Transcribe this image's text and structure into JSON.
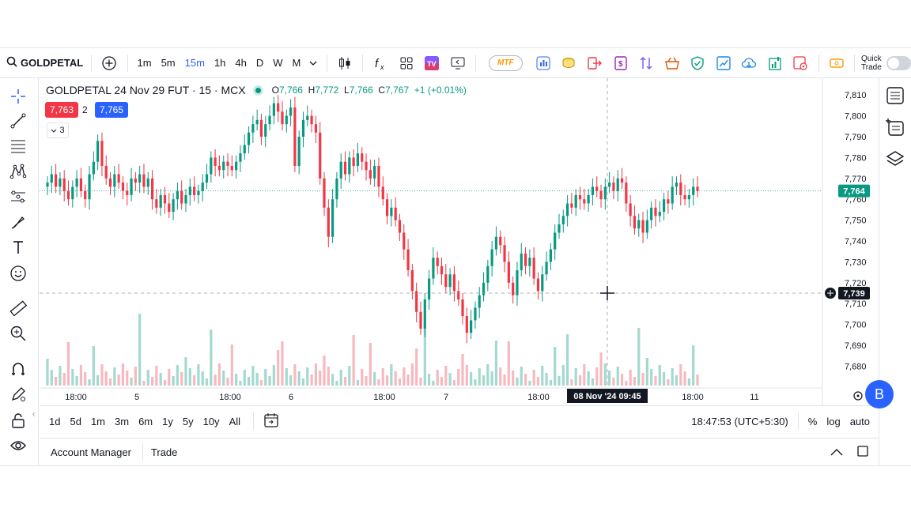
{
  "topbar": {
    "symbol": "GOLDPETAL",
    "timeframes": [
      "1m",
      "5m",
      "15m",
      "1h",
      "4h",
      "D",
      "W",
      "M"
    ],
    "active_timeframe": "15m",
    "mtf_label": "MTF",
    "quick_trade_label_1": "Quick",
    "quick_trade_label_2": "Trade"
  },
  "legend": {
    "title": "GOLDPETAL 24 Nov 29 FUT · 15 · MCX",
    "o_key": "O",
    "o_val": "7,766",
    "h_key": "H",
    "h_val": "7,772",
    "l_key": "L",
    "l_val": "7,766",
    "c_key": "C",
    "c_val": "7,767",
    "change": "+1 (+0.01%)",
    "sell_price": "7,763",
    "spread": "2",
    "buy_price": "7,765",
    "collapse_count": "3"
  },
  "price_axis": {
    "ticks": [
      "7,810",
      "7,800",
      "7,790",
      "7,780",
      "7,770",
      "7,760",
      "7,750",
      "7,740",
      "7,730",
      "7,720",
      "7,710",
      "7,700",
      "7,690",
      "7,680"
    ],
    "last_price": "7,764",
    "crosshair_price": "7,739"
  },
  "time_axis": {
    "ticks": [
      "18:00",
      "5",
      "18:00",
      "6",
      "18:00",
      "7",
      "18:00",
      "18:00",
      "11"
    ],
    "crosshair_label": "08 Nov '24   09:45"
  },
  "bottombar": {
    "ranges": [
      "1d",
      "5d",
      "1m",
      "3m",
      "6m",
      "1y",
      "5y",
      "10y",
      "All"
    ],
    "clock": "18:47:53 (UTC+5:30)",
    "percent": "%",
    "log": "log",
    "auto": "auto"
  },
  "footer": {
    "tabs": [
      "Account Manager",
      "Trade"
    ]
  },
  "avatar_letter": "B",
  "colors": {
    "up": "#089981",
    "down": "#f23645",
    "accent": "#2962ff"
  },
  "chart_data": {
    "type": "candlestick",
    "y_range": [
      7676,
      7815
    ],
    "up_color": "#089981",
    "down_color": "#f23645",
    "close": [
      7768,
      7772,
      7766,
      7770,
      7764,
      7760,
      7766,
      7770,
      7764,
      7760,
      7772,
      7778,
      7788,
      7776,
      7770,
      7766,
      7772,
      7768,
      7764,
      7762,
      7770,
      7768,
      7772,
      7766,
      7770,
      7760,
      7756,
      7762,
      7758,
      7754,
      7760,
      7764,
      7758,
      7762,
      7766,
      7762,
      7764,
      7768,
      7772,
      7780,
      7776,
      7774,
      7778,
      7776,
      7774,
      7778,
      7782,
      7786,
      7792,
      7796,
      7798,
      7790,
      7796,
      7800,
      7806,
      7802,
      7796,
      7800,
      7804,
      7776,
      7790,
      7798,
      7800,
      7796,
      7792,
      7770,
      7756,
      7742,
      7760,
      7770,
      7778,
      7772,
      7780,
      7776,
      7782,
      7778,
      7774,
      7770,
      7776,
      7766,
      7760,
      7752,
      7756,
      7750,
      7744,
      7736,
      7726,
      7716,
      7706,
      7698,
      7712,
      7722,
      7732,
      7728,
      7724,
      7718,
      7724,
      7716,
      7712,
      7704,
      7696,
      7702,
      7708,
      7714,
      7720,
      7728,
      7736,
      7742,
      7738,
      7730,
      7720,
      7714,
      7726,
      7734,
      7728,
      7732,
      7722,
      7716,
      7724,
      7730,
      7736,
      7744,
      7748,
      7752,
      7758,
      7756,
      7762,
      7760,
      7758,
      7762,
      7766,
      7764,
      7760,
      7766,
      7768,
      7764,
      7770,
      7768,
      7758,
      7752,
      7746,
      7750,
      7744,
      7750,
      7756,
      7752,
      7754,
      7760,
      7758,
      7766,
      7768,
      7762,
      7760,
      7762,
      7766,
      7764
    ]
  }
}
